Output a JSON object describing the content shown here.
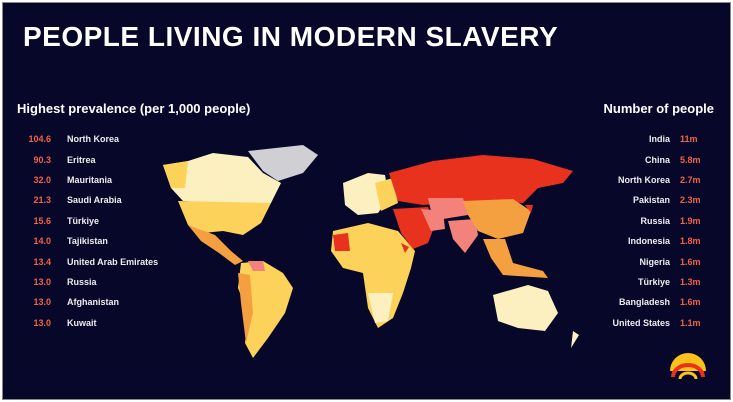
{
  "title": "PEOPLE LIVING IN MODERN SLAVERY",
  "prevalence": {
    "heading": "Highest prevalence (per 1,000 people)",
    "items": [
      {
        "value": "104.6",
        "country": "North Korea"
      },
      {
        "value": "90.3",
        "country": "Eritrea"
      },
      {
        "value": "32.0",
        "country": "Mauritania"
      },
      {
        "value": "21.3",
        "country": "Saudi Arabia"
      },
      {
        "value": "15.6",
        "country": "Türkiye"
      },
      {
        "value": "14.0",
        "country": "Tajikistan"
      },
      {
        "value": "13.4",
        "country": "United Arab Emirates"
      },
      {
        "value": "13.0",
        "country": "Russia"
      },
      {
        "value": "13.0",
        "country": "Afghanistan"
      },
      {
        "value": "13.0",
        "country": "Kuwait"
      }
    ]
  },
  "number": {
    "heading": "Number of people",
    "items": [
      {
        "country": "India",
        "value": "11m"
      },
      {
        "country": "China",
        "value": "5.8m"
      },
      {
        "country": "North Korea",
        "value": "2.7m"
      },
      {
        "country": "Pakistan",
        "value": "2.3m"
      },
      {
        "country": "Russia",
        "value": "1.9m"
      },
      {
        "country": "Indonesia",
        "value": "1.8m"
      },
      {
        "country": "Nigeria",
        "value": "1.6m"
      },
      {
        "country": "Türkiye",
        "value": "1.3m"
      },
      {
        "country": "Bangladesh",
        "value": "1.6m"
      },
      {
        "country": "United States",
        "value": "1.1m"
      }
    ]
  },
  "colors": {
    "background": "#07072a",
    "accent": "#f2624a",
    "high": "#e8321e",
    "mid": "#f5a040",
    "low": "#fcd25a",
    "lowest": "#fdf0c0",
    "nodata": "#cfcfd4"
  }
}
